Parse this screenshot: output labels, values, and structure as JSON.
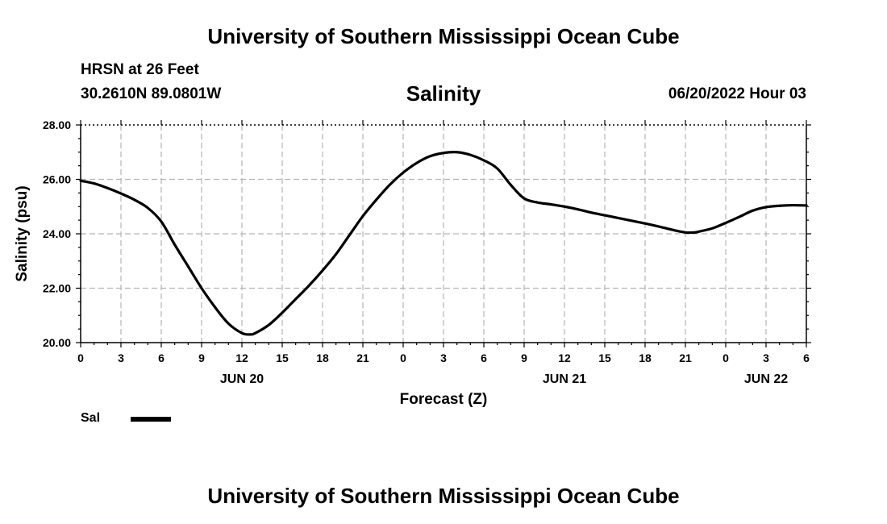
{
  "header": {
    "title": "University of Southern Mississippi Ocean Cube",
    "station": "HRSN at 26 Feet",
    "coords": "30.2610N  89.0801W",
    "datetime": "06/20/2022 Hour 03"
  },
  "footer": {
    "title": "University of Southern Mississippi Ocean Cube"
  },
  "legend": {
    "label": "Sal",
    "color": "#000000"
  },
  "chart_data": {
    "type": "line",
    "title": "Salinity",
    "xlabel": "Forecast (Z)",
    "ylabel": "Salinity (psu)",
    "xlim": [
      0,
      54
    ],
    "ylim": [
      20,
      28
    ],
    "grid": true,
    "legend_position": "bottom-left",
    "x_ticks": [
      0,
      3,
      6,
      9,
      12,
      15,
      18,
      21,
      24,
      27,
      30,
      33,
      36,
      39,
      42,
      45,
      48,
      51,
      54
    ],
    "x_tick_labels": [
      "0",
      "3",
      "6",
      "9",
      "12",
      "15",
      "18",
      "21",
      "0",
      "3",
      "6",
      "9",
      "12",
      "15",
      "18",
      "21",
      "0",
      "3",
      "6"
    ],
    "y_ticks": [
      20,
      22,
      24,
      26,
      28
    ],
    "y_tick_labels": [
      "20.00",
      "22.00",
      "24.00",
      "26.00",
      "28.00"
    ],
    "date_labels": [
      {
        "x": 12,
        "label": "JUN 20"
      },
      {
        "x": 36,
        "label": "JUN 21"
      },
      {
        "x": 51,
        "label": "JUN 22"
      }
    ],
    "series": [
      {
        "name": "Sal",
        "x": [
          0,
          1,
          2,
          3,
          4,
          5,
          6,
          7,
          8,
          9,
          10,
          11,
          12,
          12.6,
          13,
          14,
          15,
          16,
          17,
          18,
          19,
          20,
          21,
          22,
          23,
          24,
          25,
          26,
          27,
          28,
          29,
          30,
          31,
          32,
          33,
          34,
          35,
          36,
          37,
          38,
          39,
          40,
          41,
          42,
          43,
          44,
          45,
          45.7,
          46,
          47,
          48,
          49,
          50,
          51,
          52,
          53,
          54
        ],
        "y": [
          25.95,
          25.85,
          25.68,
          25.48,
          25.25,
          24.95,
          24.45,
          23.6,
          22.8,
          22.0,
          21.3,
          20.7,
          20.35,
          20.3,
          20.35,
          20.65,
          21.1,
          21.6,
          22.1,
          22.65,
          23.25,
          23.95,
          24.65,
          25.25,
          25.8,
          26.25,
          26.6,
          26.85,
          26.97,
          27.0,
          26.9,
          26.7,
          26.4,
          25.8,
          25.3,
          25.15,
          25.08,
          25.0,
          24.9,
          24.78,
          24.68,
          24.58,
          24.48,
          24.38,
          24.27,
          24.15,
          24.05,
          24.05,
          24.08,
          24.2,
          24.4,
          24.62,
          24.85,
          24.98,
          25.03,
          25.05,
          25.04
        ]
      }
    ]
  }
}
